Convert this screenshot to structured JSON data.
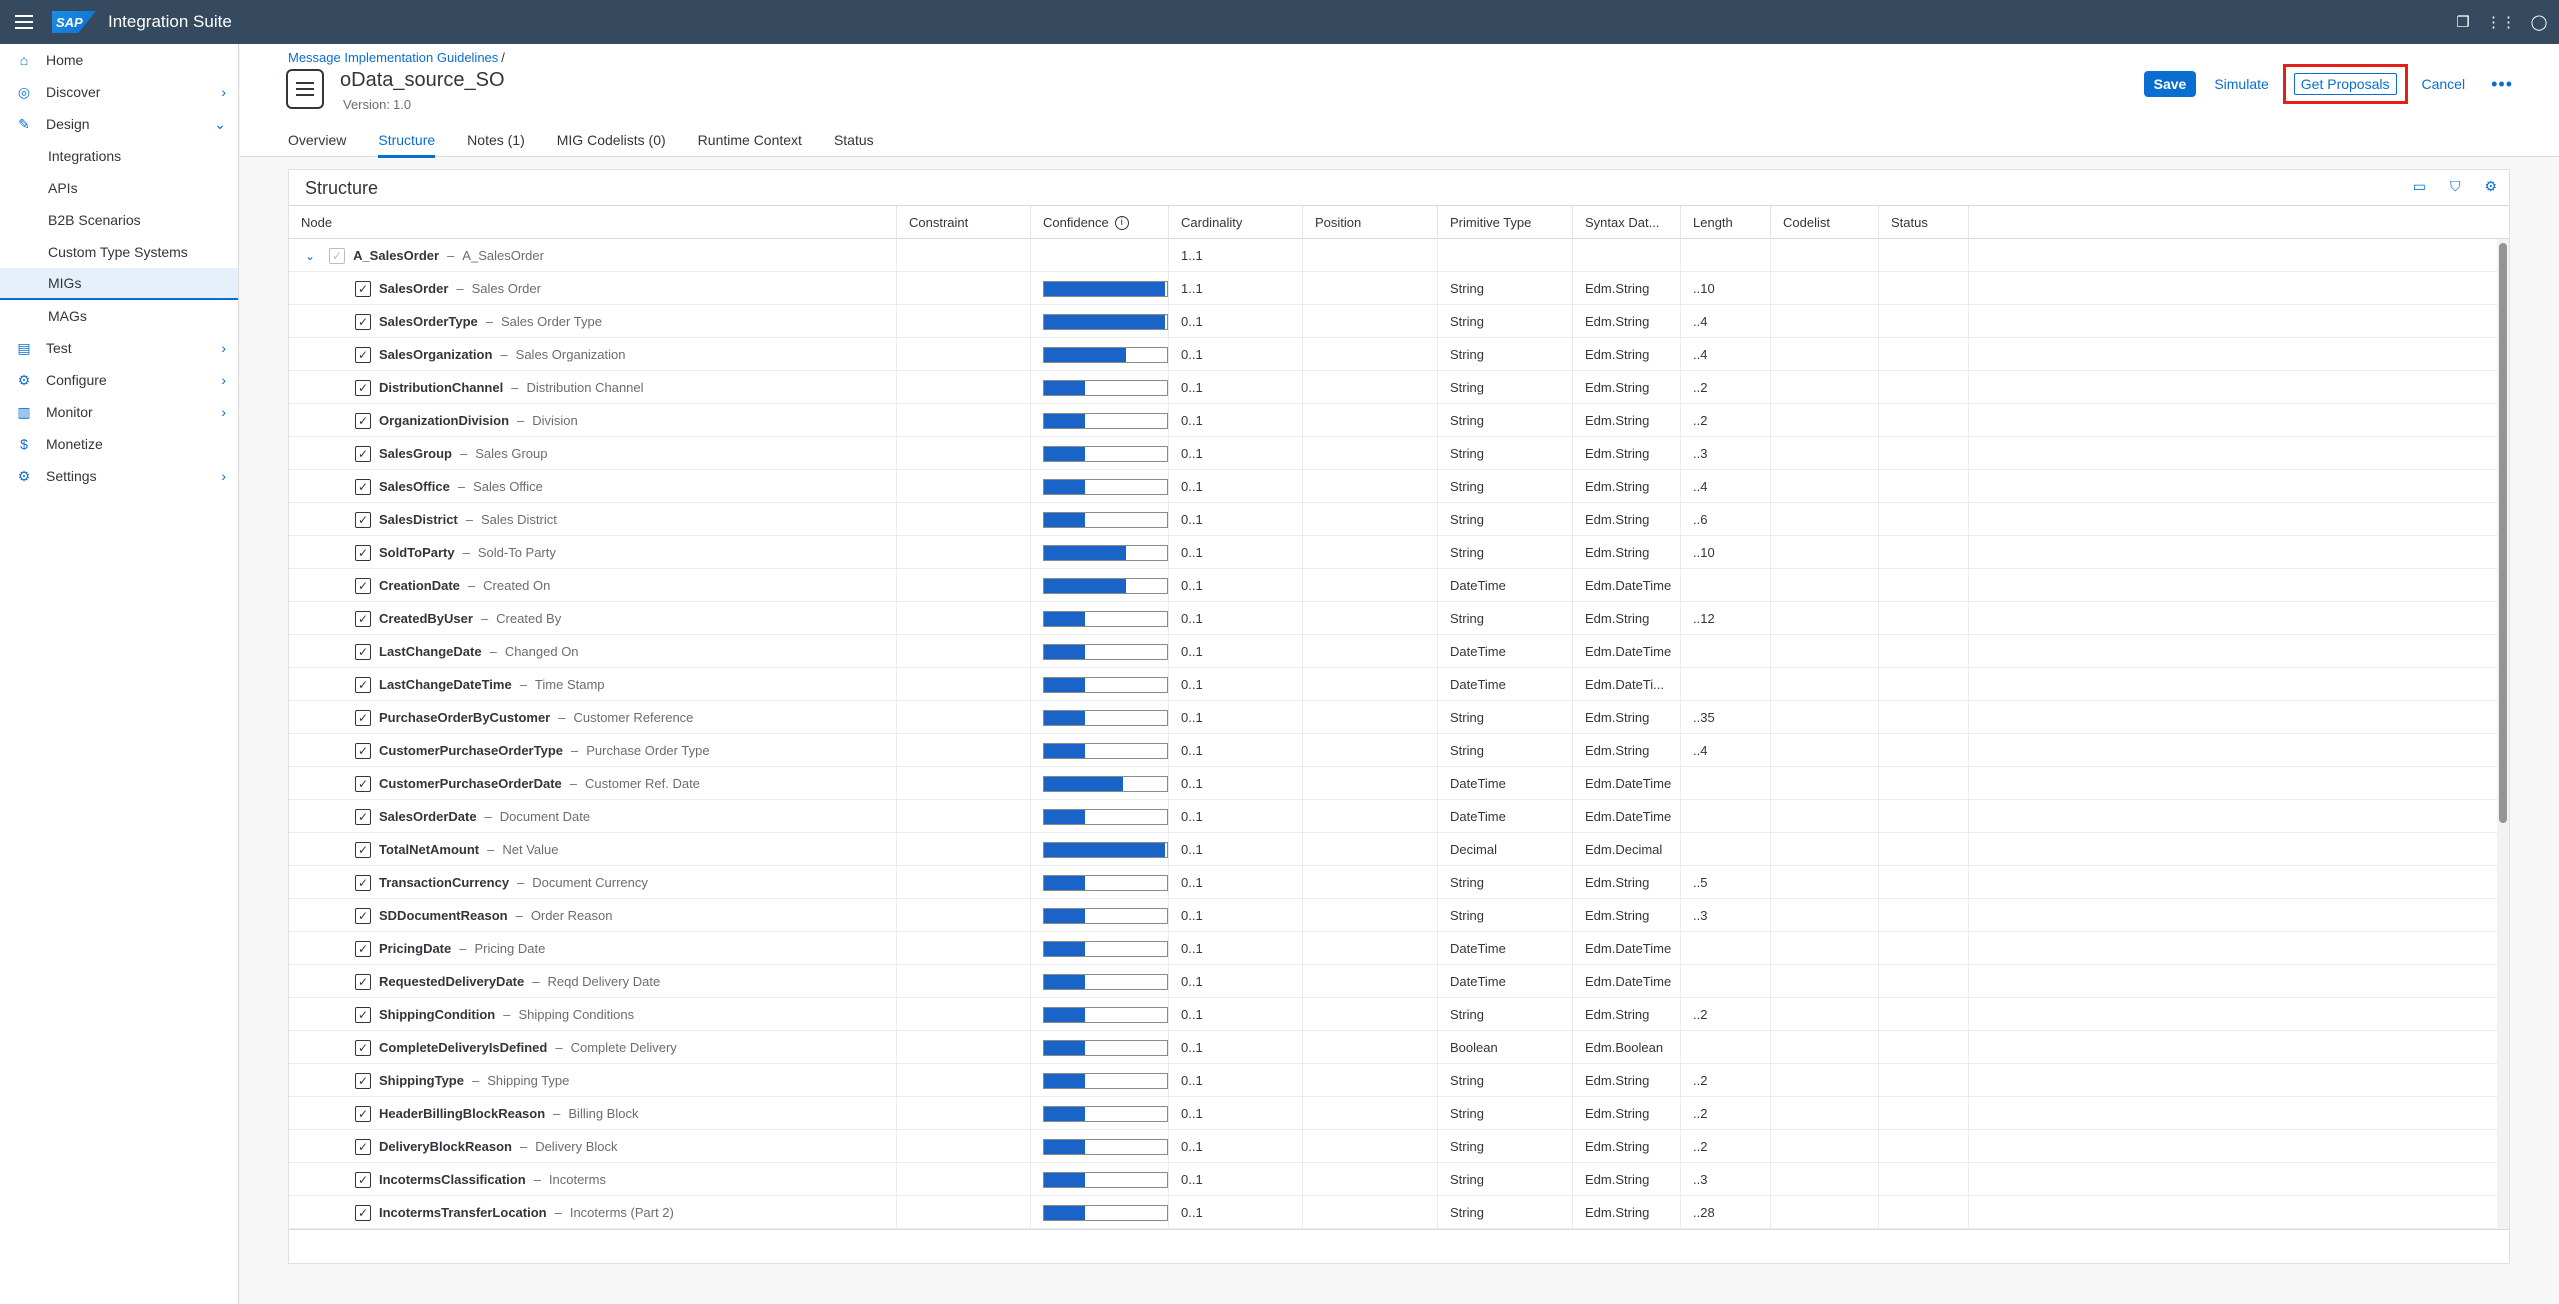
{
  "shell": {
    "logo": "SAP",
    "title": "Integration Suite"
  },
  "sidebar": {
    "items": [
      {
        "label": "Home",
        "icon": "home-icon",
        "glyph": "⌂",
        "chev": ""
      },
      {
        "label": "Discover",
        "icon": "compass-icon",
        "glyph": "◎",
        "chev": "›"
      },
      {
        "label": "Design",
        "icon": "pencil-icon",
        "glyph": "✎",
        "chev": "⌄"
      }
    ],
    "design_sub": [
      "Integrations",
      "APIs",
      "B2B Scenarios",
      "Custom Type Systems",
      "MIGs",
      "MAGs"
    ],
    "items_after": [
      {
        "label": "Test",
        "icon": "test-icon",
        "glyph": "▤",
        "chev": "›"
      },
      {
        "label": "Configure",
        "icon": "sliders-icon",
        "glyph": "⚙",
        "chev": "›"
      },
      {
        "label": "Monitor",
        "icon": "chart-icon",
        "glyph": "▥",
        "chev": "›"
      },
      {
        "label": "Monetize",
        "icon": "dollar-icon",
        "glyph": "$",
        "chev": ""
      },
      {
        "label": "Settings",
        "icon": "settings-icon",
        "glyph": "⚙",
        "chev": "›"
      }
    ]
  },
  "header": {
    "breadcrumb": "Message Implementation Guidelines",
    "breadcrumb_sep": "/",
    "title": "oData_source_SO",
    "version_label": "Version:",
    "version": "1.0",
    "actions": {
      "save": "Save",
      "simulate": "Simulate",
      "proposals": "Get Proposals",
      "cancel": "Cancel",
      "more": "•••"
    },
    "tabs": [
      "Overview",
      "Structure",
      "Notes (1)",
      "MIG Codelists (0)",
      "Runtime Context",
      "Status"
    ]
  },
  "structure": {
    "title": "Structure",
    "columns": [
      "Node",
      "Constraint",
      "Confidence",
      "Cardinality",
      "Position",
      "Primitive Type",
      "Syntax Dat...",
      "Length",
      "Codelist",
      "Status"
    ],
    "root": {
      "name": "A_SalesOrder",
      "desc": "A_SalesOrder",
      "cardinality": "1..1"
    },
    "rows": [
      {
        "name": "SalesOrder",
        "desc": "Sales Order",
        "conf": 0.98,
        "card": "1..1",
        "prim": "String",
        "syn": "Edm.String",
        "len": "..10"
      },
      {
        "name": "SalesOrderType",
        "desc": "Sales Order Type",
        "conf": 0.98,
        "card": "0..1",
        "prim": "String",
        "syn": "Edm.String",
        "len": "..4"
      },
      {
        "name": "SalesOrganization",
        "desc": "Sales Organization",
        "conf": 0.67,
        "card": "0..1",
        "prim": "String",
        "syn": "Edm.String",
        "len": "..4"
      },
      {
        "name": "DistributionChannel",
        "desc": "Distribution Channel",
        "conf": 0.33,
        "card": "0..1",
        "prim": "String",
        "syn": "Edm.String",
        "len": "..2"
      },
      {
        "name": "OrganizationDivision",
        "desc": "Division",
        "conf": 0.33,
        "card": "0..1",
        "prim": "String",
        "syn": "Edm.String",
        "len": "..2"
      },
      {
        "name": "SalesGroup",
        "desc": "Sales Group",
        "conf": 0.33,
        "card": "0..1",
        "prim": "String",
        "syn": "Edm.String",
        "len": "..3"
      },
      {
        "name": "SalesOffice",
        "desc": "Sales Office",
        "conf": 0.33,
        "card": "0..1",
        "prim": "String",
        "syn": "Edm.String",
        "len": "..4"
      },
      {
        "name": "SalesDistrict",
        "desc": "Sales District",
        "conf": 0.33,
        "card": "0..1",
        "prim": "String",
        "syn": "Edm.String",
        "len": "..6"
      },
      {
        "name": "SoldToParty",
        "desc": "Sold-To Party",
        "conf": 0.67,
        "card": "0..1",
        "prim": "String",
        "syn": "Edm.String",
        "len": "..10"
      },
      {
        "name": "CreationDate",
        "desc": "Created On",
        "conf": 0.67,
        "card": "0..1",
        "prim": "DateTime",
        "syn": "Edm.DateTime",
        "len": ""
      },
      {
        "name": "CreatedByUser",
        "desc": "Created By",
        "conf": 0.33,
        "card": "0..1",
        "prim": "String",
        "syn": "Edm.String",
        "len": "..12"
      },
      {
        "name": "LastChangeDate",
        "desc": "Changed On",
        "conf": 0.33,
        "card": "0..1",
        "prim": "DateTime",
        "syn": "Edm.DateTime",
        "len": ""
      },
      {
        "name": "LastChangeDateTime",
        "desc": "Time Stamp",
        "conf": 0.33,
        "card": "0..1",
        "prim": "DateTime",
        "syn": "Edm.DateTi...",
        "len": ""
      },
      {
        "name": "PurchaseOrderByCustomer",
        "desc": "Customer Reference",
        "conf": 0.33,
        "card": "0..1",
        "prim": "String",
        "syn": "Edm.String",
        "len": "..35"
      },
      {
        "name": "CustomerPurchaseOrderType",
        "desc": "Purchase Order Type",
        "conf": 0.33,
        "card": "0..1",
        "prim": "String",
        "syn": "Edm.String",
        "len": "..4"
      },
      {
        "name": "CustomerPurchaseOrderDate",
        "desc": "Customer Ref. Date",
        "conf": 0.64,
        "card": "0..1",
        "prim": "DateTime",
        "syn": "Edm.DateTime",
        "len": ""
      },
      {
        "name": "SalesOrderDate",
        "desc": "Document Date",
        "conf": 0.33,
        "card": "0..1",
        "prim": "DateTime",
        "syn": "Edm.DateTime",
        "len": ""
      },
      {
        "name": "TotalNetAmount",
        "desc": "Net Value",
        "conf": 0.98,
        "card": "0..1",
        "prim": "Decimal",
        "syn": "Edm.Decimal",
        "len": ""
      },
      {
        "name": "TransactionCurrency",
        "desc": "Document Currency",
        "conf": 0.33,
        "card": "0..1",
        "prim": "String",
        "syn": "Edm.String",
        "len": "..5"
      },
      {
        "name": "SDDocumentReason",
        "desc": "Order Reason",
        "conf": 0.33,
        "card": "0..1",
        "prim": "String",
        "syn": "Edm.String",
        "len": "..3"
      },
      {
        "name": "PricingDate",
        "desc": "Pricing Date",
        "conf": 0.33,
        "card": "0..1",
        "prim": "DateTime",
        "syn": "Edm.DateTime",
        "len": ""
      },
      {
        "name": "RequestedDeliveryDate",
        "desc": "Reqd Delivery Date",
        "conf": 0.33,
        "card": "0..1",
        "prim": "DateTime",
        "syn": "Edm.DateTime",
        "len": ""
      },
      {
        "name": "ShippingCondition",
        "desc": "Shipping Conditions",
        "conf": 0.33,
        "card": "0..1",
        "prim": "String",
        "syn": "Edm.String",
        "len": "..2"
      },
      {
        "name": "CompleteDeliveryIsDefined",
        "desc": "Complete Delivery",
        "conf": 0.33,
        "card": "0..1",
        "prim": "Boolean",
        "syn": "Edm.Boolean",
        "len": ""
      },
      {
        "name": "ShippingType",
        "desc": "Shipping Type",
        "conf": 0.33,
        "card": "0..1",
        "prim": "String",
        "syn": "Edm.String",
        "len": "..2"
      },
      {
        "name": "HeaderBillingBlockReason",
        "desc": "Billing Block",
        "conf": 0.33,
        "card": "0..1",
        "prim": "String",
        "syn": "Edm.String",
        "len": "..2"
      },
      {
        "name": "DeliveryBlockReason",
        "desc": "Delivery Block",
        "conf": 0.33,
        "card": "0..1",
        "prim": "String",
        "syn": "Edm.String",
        "len": "..2"
      },
      {
        "name": "IncotermsClassification",
        "desc": "Incoterms",
        "conf": 0.33,
        "card": "0..1",
        "prim": "String",
        "syn": "Edm.String",
        "len": "..3"
      },
      {
        "name": "IncotermsTransferLocation",
        "desc": "Incoterms (Part 2)",
        "conf": 0.33,
        "card": "0..1",
        "prim": "String",
        "syn": "Edm.String",
        "len": "..28"
      }
    ]
  },
  "colors": {
    "shell": "#354a5f",
    "accent": "#0a6ed1",
    "bar": "#1a64c8",
    "highlight": "#e5201b"
  }
}
